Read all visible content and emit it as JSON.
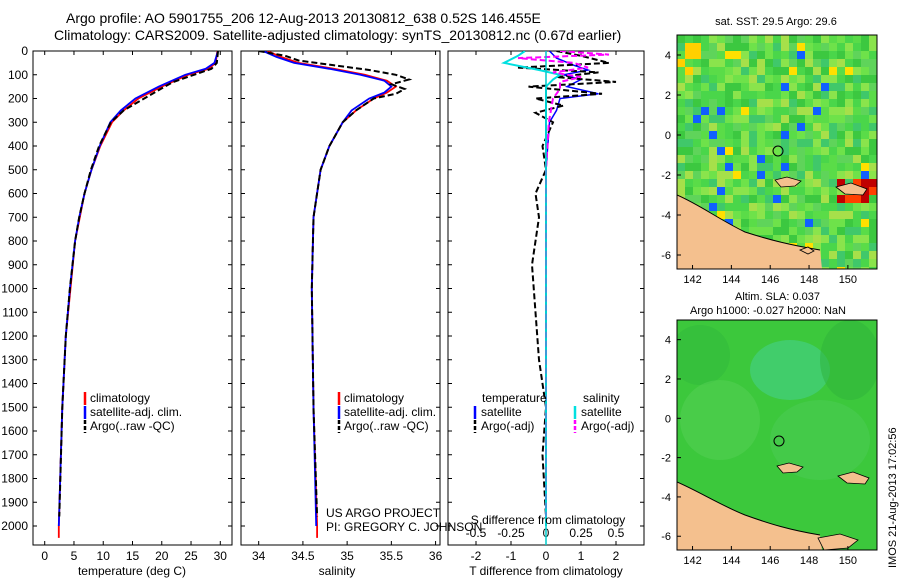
{
  "header": {
    "line1": "Argo profile: AO 5901755_206 12-Aug-2013 20130812_638 0.52S 146.455E",
    "line2": "Climatology: CARS2009. Satellite-adjusted climatology: synTS_20130812.nc (0.67d earlier)"
  },
  "maps": {
    "sst_title": "sat. SST: 29.5 Argo: 29.6",
    "sla_title_1": "Altim. SLA: 0.037",
    "sla_title_2": "Argo h1000: -0.027 h2000: NaN",
    "side_stamp": "IMOS 21-Aug-2013 17:02:56",
    "land_color": "#f4c08e",
    "lon_ticks": [
      "142",
      "144",
      "146",
      "148",
      "150"
    ],
    "lat_ticks": [
      "4",
      "2",
      "0",
      "-2",
      "-4",
      "-6"
    ],
    "argo_position": {
      "lon": 146.455,
      "lat": -0.52
    }
  },
  "footer": {
    "project": "US ARGO PROJECT",
    "pi": "PI: GREGORY C. JOHNSON"
  },
  "colors": {
    "climatology": "#ff0000",
    "satellite": "#0000ff",
    "argo": "#000000",
    "salinity_satellite": "#00e0e0",
    "salinity_argo": "#ff00ff"
  },
  "chart_data": [
    {
      "type": "line",
      "xlabel": "temperature (deg C)",
      "ylabel": "",
      "xlim": [
        -2,
        32
      ],
      "ylim": [
        2080,
        0
      ],
      "xticks": [
        0,
        5,
        10,
        15,
        20,
        25,
        30
      ],
      "yticks": [
        0,
        100,
        200,
        300,
        400,
        500,
        600,
        700,
        800,
        900,
        1000,
        1100,
        1200,
        1300,
        1400,
        1500,
        1600,
        1700,
        1800,
        1900,
        2000
      ],
      "legend": [
        "climatology",
        "satellite-adj. clim.",
        "Argo(..raw -QC)"
      ],
      "legend_position": "lower-right",
      "series": [
        {
          "name": "climatology",
          "depth": [
            0,
            50,
            75,
            100,
            150,
            200,
            250,
            300,
            400,
            500,
            600,
            700,
            800,
            1000,
            1200,
            1500,
            2000,
            2050
          ],
          "values": [
            29.5,
            29.2,
            28.0,
            24.5,
            20.0,
            16.0,
            13.5,
            11.5,
            9.5,
            8.0,
            6.8,
            6.0,
            5.2,
            4.4,
            3.6,
            3.0,
            2.4,
            2.4
          ]
        },
        {
          "name": "satellite-adj. clim.",
          "depth": [
            0,
            50,
            75,
            100,
            150,
            200,
            250,
            300,
            400,
            500,
            600,
            700,
            800,
            1000,
            1200,
            1500,
            2000
          ],
          "values": [
            29.6,
            29.0,
            27.5,
            24.0,
            19.5,
            15.5,
            13.0,
            11.2,
            9.4,
            8.0,
            6.8,
            5.9,
            5.2,
            4.3,
            3.6,
            3.0,
            2.4
          ]
        },
        {
          "name": "Argo(..raw -QC)",
          "depth": [
            0,
            50,
            75,
            100,
            130,
            150,
            200,
            250,
            300,
            400,
            500,
            600,
            700,
            800,
            1000,
            1200,
            1500,
            1960
          ],
          "values": [
            29.6,
            29.4,
            28.5,
            25.5,
            22.0,
            20.5,
            17.0,
            13.5,
            11.3,
            9.3,
            7.9,
            6.8,
            5.9,
            5.2,
            4.3,
            3.6,
            3.0,
            2.5
          ]
        }
      ]
    },
    {
      "type": "line",
      "xlabel": "salinity",
      "ylabel": "",
      "xlim": [
        33.8,
        36.05
      ],
      "ylim": [
        2080,
        0
      ],
      "xticks": [
        34,
        34.5,
        35,
        35.5,
        36
      ],
      "legend": [
        "climatology",
        "satellite-adj. clim.",
        "Argo(..raw -QC)"
      ],
      "legend_position": "lower-right",
      "series": [
        {
          "name": "climatology",
          "depth": [
            0,
            25,
            50,
            75,
            100,
            125,
            150,
            175,
            200,
            250,
            300,
            400,
            500,
            700,
            1000,
            1500,
            2000,
            2050
          ],
          "values": [
            34.1,
            34.25,
            34.45,
            34.85,
            35.2,
            35.45,
            35.55,
            35.45,
            35.3,
            35.1,
            34.95,
            34.8,
            34.7,
            34.62,
            34.6,
            34.62,
            34.66,
            34.66
          ]
        },
        {
          "name": "satellite-adj. clim.",
          "depth": [
            0,
            25,
            50,
            75,
            100,
            125,
            150,
            175,
            200,
            250,
            300,
            400,
            500,
            700,
            1000,
            1500,
            2000
          ],
          "values": [
            34.05,
            34.2,
            34.4,
            34.8,
            35.15,
            35.42,
            35.5,
            35.42,
            35.25,
            35.05,
            34.95,
            34.8,
            34.7,
            34.62,
            34.6,
            34.62,
            34.65
          ]
        },
        {
          "name": "Argo(..raw -QC)",
          "depth": [
            0,
            20,
            40,
            60,
            80,
            100,
            120,
            140,
            160,
            180,
            200,
            250,
            300,
            400,
            500,
            700,
            1000,
            1500,
            1960
          ],
          "values": [
            34.0,
            34.3,
            34.45,
            34.85,
            35.25,
            35.55,
            35.7,
            35.5,
            35.65,
            35.55,
            35.3,
            35.1,
            34.95,
            34.8,
            34.7,
            34.62,
            34.6,
            34.62,
            34.66
          ]
        }
      ]
    },
    {
      "type": "line",
      "xlabel": "T difference from climatology",
      "xlabel_top": "S difference from climatology",
      "ylabel": "",
      "xlim": [
        -2.8,
        2.8
      ],
      "ylim": [
        2080,
        0
      ],
      "xticks": [
        -2,
        -1,
        0,
        1,
        2
      ],
      "xticks_top": [
        "-0.5",
        "-0.25",
        "0",
        "0.25",
        "0.5"
      ],
      "legend": [
        "temperature",
        "satellite",
        "Argo(-adj)",
        "salinity",
        "satellite",
        "Argo(-adj)"
      ],
      "legend_position": "lower-right",
      "series": [
        {
          "name": "satellite",
          "depth": [
            0,
            30,
            60,
            80,
            100,
            120,
            150,
            180,
            200,
            250,
            300,
            500,
            1000,
            2000
          ],
          "values": [
            0.1,
            0.3,
            0.8,
            1.2,
            0.5,
            1.0,
            0.6,
            1.5,
            0.4,
            0.3,
            0.1,
            0.0,
            0.0,
            0.0
          ]
        },
        {
          "name": "Argo(-adj)",
          "depth": [
            0,
            20,
            50,
            70,
            90,
            110,
            130,
            150,
            180,
            200,
            230,
            260,
            300,
            400,
            500,
            600,
            700,
            900,
            1100,
            1300,
            1500,
            1700,
            1960
          ],
          "values": [
            0.3,
            1.0,
            1.8,
            -0.8,
            1.5,
            0.3,
            2.0,
            -0.5,
            1.6,
            -0.3,
            0.5,
            -0.3,
            0.2,
            -0.1,
            0.0,
            -0.3,
            -0.2,
            -0.4,
            -0.3,
            -0.2,
            0.0,
            -0.1,
            0.0
          ]
        },
        {
          "name": "satellite",
          "depth": [
            0,
            20,
            50,
            80,
            100,
            120,
            150,
            200,
            300,
            500,
            1000,
            2000
          ],
          "values": [
            -0.15,
            -0.2,
            -0.3,
            -0.05,
            0.1,
            0.05,
            0.0,
            0.0,
            0.0,
            0.0,
            0.0,
            0.0
          ]
        },
        {
          "name": "Argo(-adj)",
          "depth": [
            0,
            15,
            30,
            50,
            70,
            90,
            110,
            130,
            160,
            200,
            300,
            500,
            1000,
            1500,
            1960
          ],
          "values": [
            0.1,
            0.45,
            -0.2,
            0.2,
            0.3,
            0.05,
            0.25,
            0.1,
            0.1,
            0.05,
            0.02,
            0.0,
            0.0,
            0.0,
            0.0
          ]
        }
      ]
    }
  ]
}
